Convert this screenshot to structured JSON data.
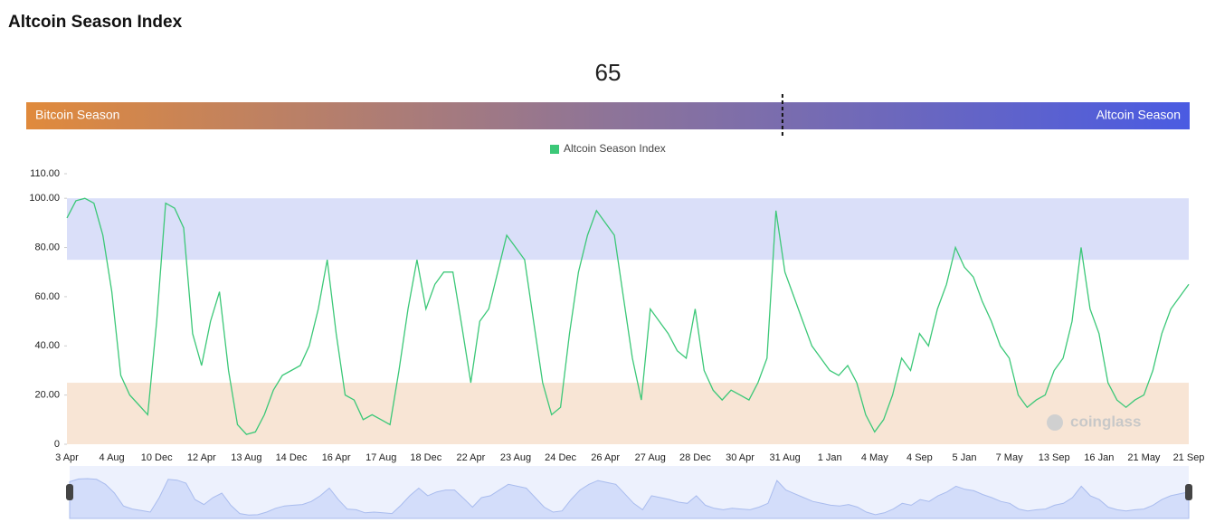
{
  "chart_data": {
    "type": "line",
    "title": "Altcoin Season Index",
    "gauge": {
      "value": 65,
      "range": [
        0,
        100
      ],
      "left_label": "Bitcoin Season",
      "right_label": "Altcoin Season"
    },
    "watermark": "coinglass",
    "categories": [
      "3 Apr",
      null,
      null,
      null,
      null,
      "4 Aug",
      null,
      null,
      null,
      null,
      "10 Dec",
      null,
      null,
      null,
      null,
      "12 Apr",
      null,
      null,
      null,
      null,
      "13 Aug",
      null,
      null,
      null,
      null,
      "14 Dec",
      null,
      null,
      null,
      null,
      "16 Apr",
      null,
      null,
      null,
      null,
      "17 Aug",
      null,
      null,
      null,
      null,
      "18 Dec",
      null,
      null,
      null,
      null,
      "22 Apr",
      null,
      null,
      null,
      null,
      "23 Aug",
      null,
      null,
      null,
      null,
      "24 Dec",
      null,
      null,
      null,
      null,
      "26 Apr",
      null,
      null,
      null,
      null,
      "27 Aug",
      null,
      null,
      null,
      null,
      "28 Dec",
      null,
      null,
      null,
      null,
      "30 Apr",
      null,
      null,
      null,
      null,
      "31 Aug",
      null,
      null,
      null,
      null,
      "1 Jan",
      null,
      null,
      null,
      null,
      "4 May",
      null,
      null,
      null,
      null,
      "4 Sep",
      null,
      null,
      null,
      null,
      "5 Jan",
      null,
      null,
      null,
      null,
      "7 May",
      null,
      null,
      null,
      null,
      "13 Sep",
      null,
      null,
      null,
      null,
      "16 Jan",
      null,
      null,
      null,
      null,
      "21 May",
      null,
      null,
      null,
      null,
      "21 Sep"
    ],
    "series": [
      {
        "name": "Altcoin Season Index",
        "color": "#3cc878",
        "values": [
          92,
          99,
          100,
          98,
          85,
          62,
          28,
          20,
          16,
          12,
          50,
          98,
          96,
          88,
          45,
          32,
          50,
          62,
          30,
          8,
          4,
          5,
          12,
          22,
          28,
          30,
          32,
          40,
          55,
          75,
          45,
          20,
          18,
          10,
          12,
          10,
          8,
          30,
          55,
          75,
          55,
          65,
          70,
          70,
          48,
          25,
          50,
          55,
          70,
          85,
          80,
          75,
          50,
          25,
          12,
          15,
          45,
          70,
          85,
          95,
          90,
          85,
          60,
          35,
          18,
          55,
          50,
          45,
          38,
          35,
          55,
          30,
          22,
          18,
          22,
          20,
          18,
          25,
          35,
          95,
          70,
          60,
          50,
          40,
          35,
          30,
          28,
          32,
          25,
          12,
          5,
          10,
          20,
          35,
          30,
          45,
          40,
          55,
          65,
          80,
          72,
          68,
          58,
          50,
          40,
          35,
          20,
          15,
          18,
          20,
          30,
          35,
          50,
          80,
          55,
          45,
          25,
          18,
          15,
          18,
          20,
          30,
          45,
          55,
          60,
          65
        ]
      }
    ],
    "bands": [
      {
        "from": 75,
        "to": 100,
        "color": "#dadff9"
      },
      {
        "from": 0,
        "to": 25,
        "color": "#f8e5d5"
      }
    ],
    "ylim": [
      0,
      110
    ],
    "yticks": [
      0,
      {
        "value": 20,
        "label": "20.00"
      },
      {
        "value": 40,
        "label": "40.00"
      },
      {
        "value": 60,
        "label": "60.00"
      },
      {
        "value": 80,
        "label": "80.00"
      },
      {
        "value": 100,
        "label": "100.00"
      },
      {
        "value": 110,
        "label": "110.00"
      }
    ]
  }
}
